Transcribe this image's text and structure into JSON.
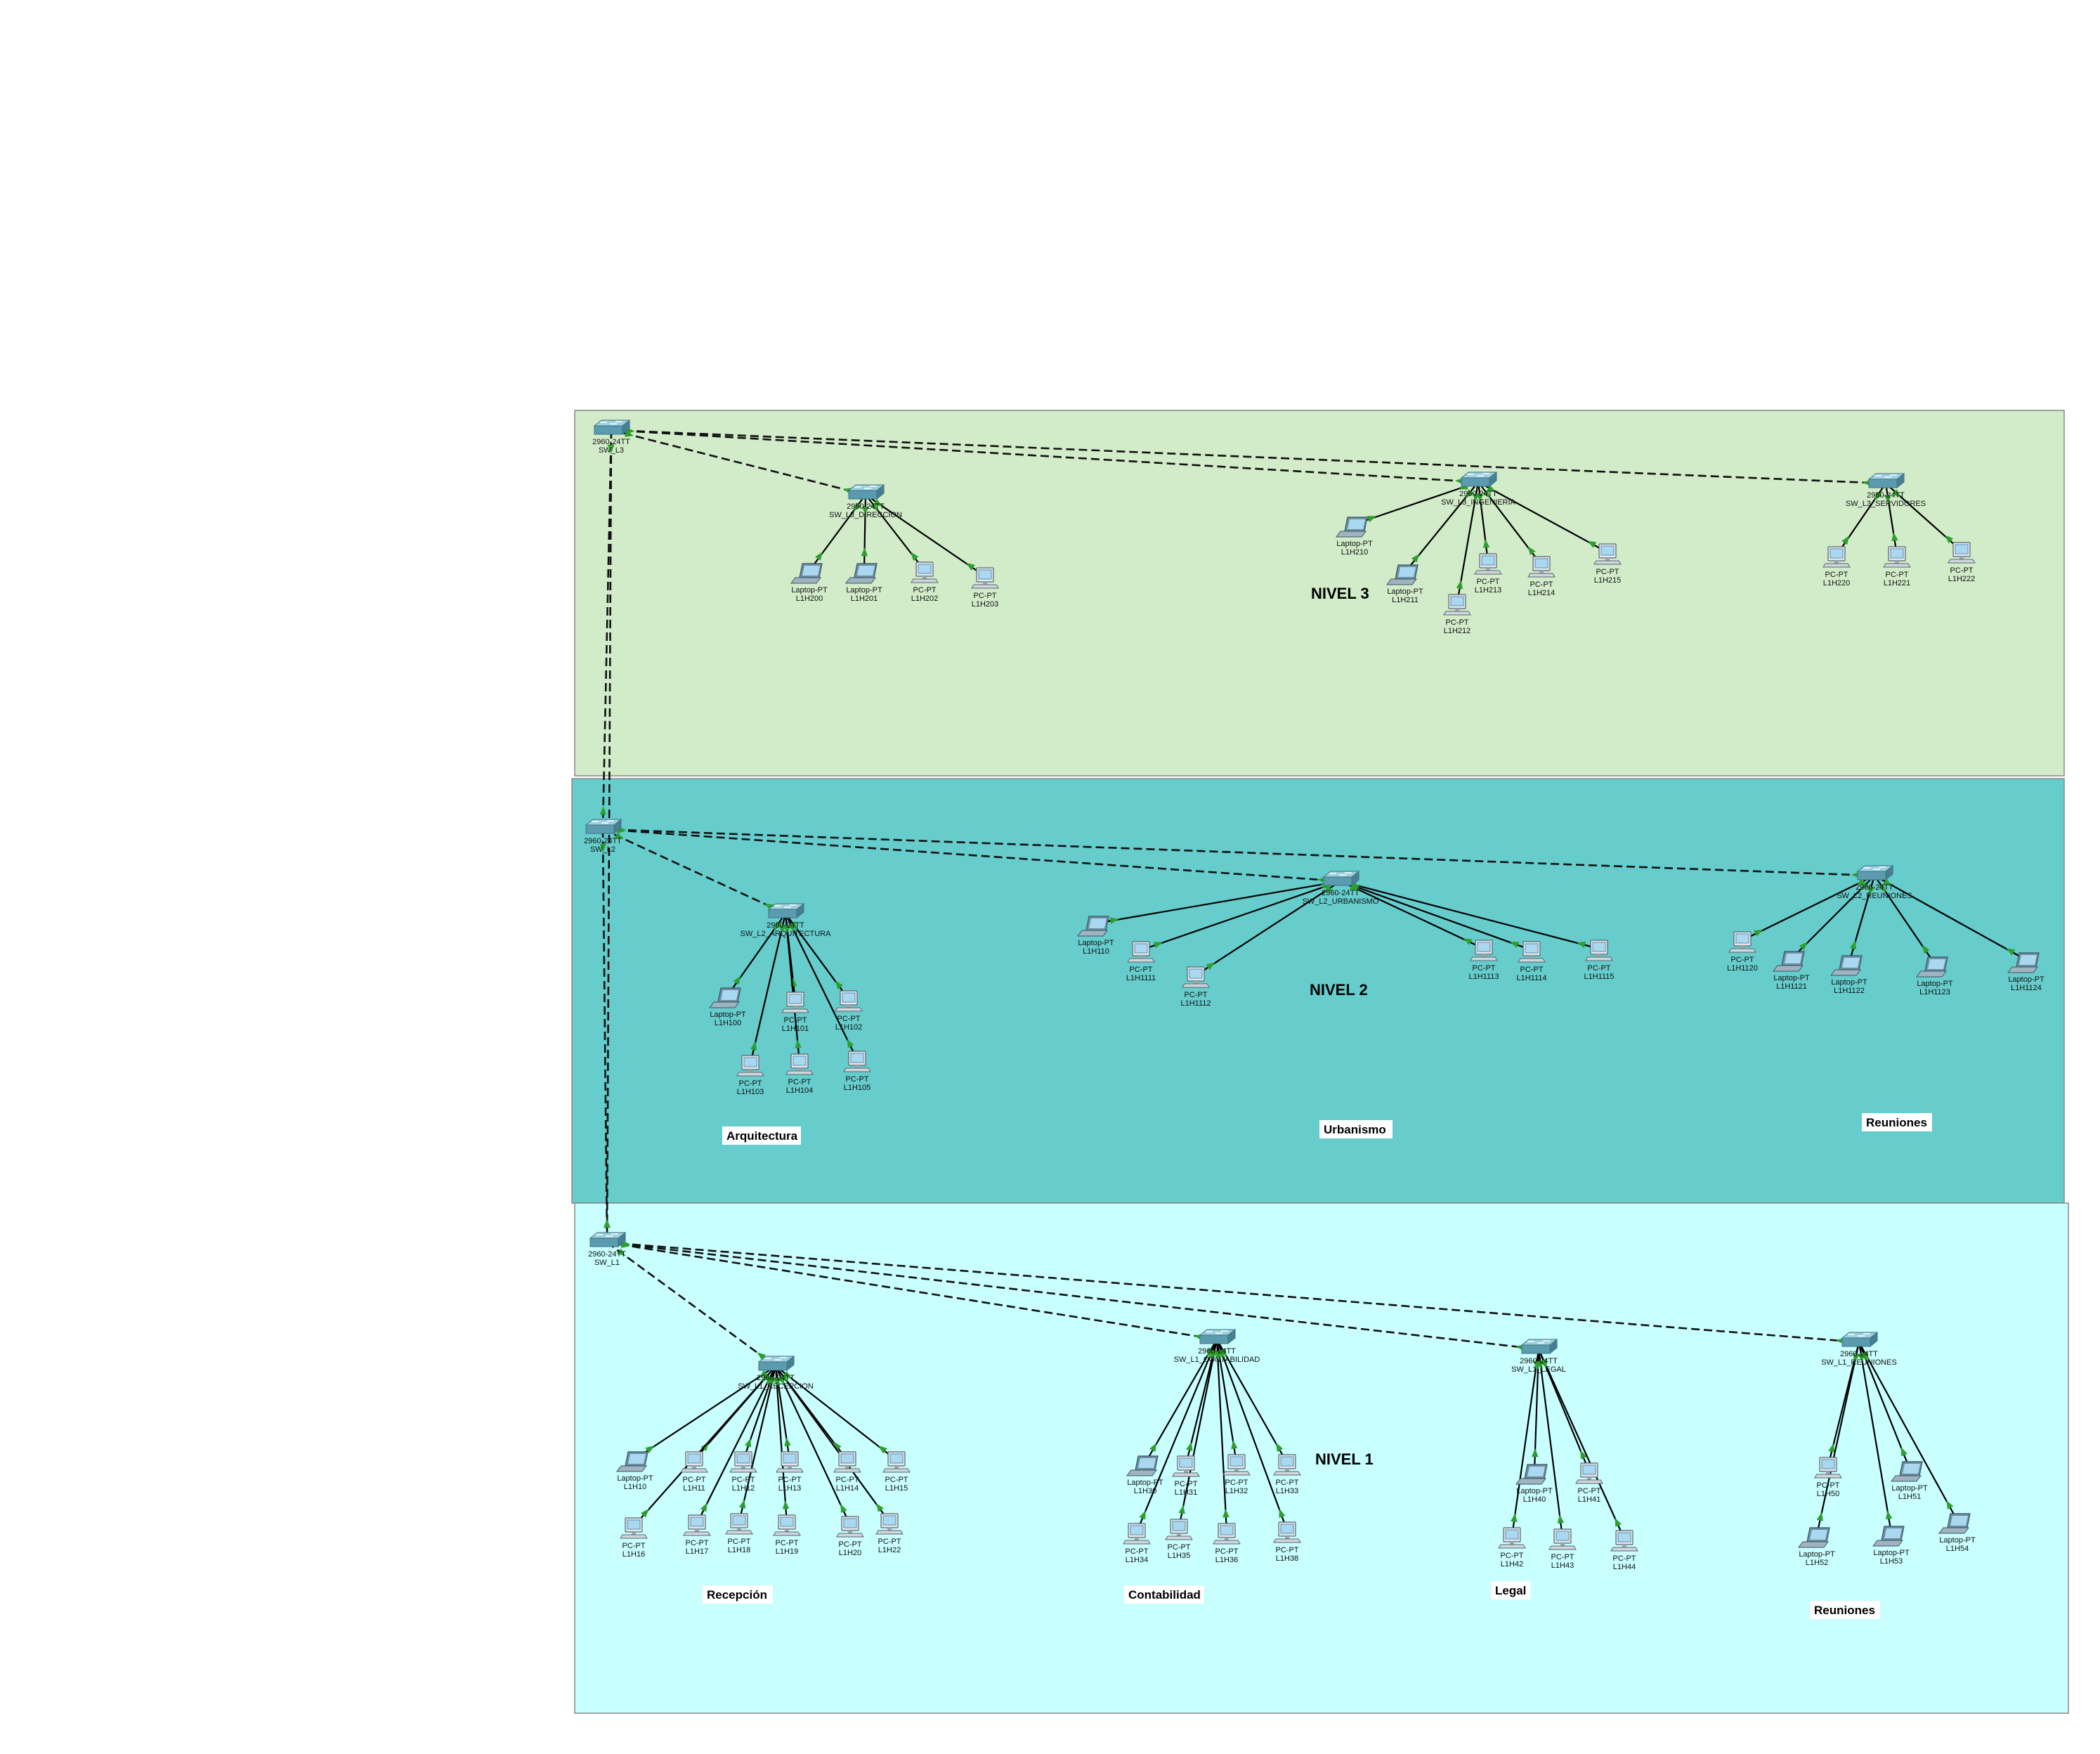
{
  "colors": {
    "nivel3_bg": "#d2ebc9",
    "nivel2_bg": "#66cccc",
    "nivel1_bg": "#c9ffff",
    "trunk_link": "#111111",
    "access_link": "#000000",
    "link_endpoint": "#2e9e2e",
    "switch_body": "#5b9bb0",
    "label_box": "#ffffff"
  },
  "icons": {
    "switch": "switch-icon",
    "pc": "pc-icon",
    "laptop": "laptop-icon"
  },
  "zones": [
    {
      "id": "n3",
      "label": "NIVEL 3"
    },
    {
      "id": "n2",
      "label": "NIVEL 2"
    },
    {
      "id": "n1",
      "label": "NIVEL 1"
    }
  ],
  "area_labels": [
    "Arquitectura",
    "Urbanismo",
    "Reuniones",
    "Recepción",
    "Contabilidad",
    "Legal",
    "Reuniones"
  ],
  "switches": [
    {
      "id": "sw_l3",
      "model": "2960-24TT",
      "name": "SW_L3"
    },
    {
      "id": "sw_l3_dir",
      "model": "2960-24TT",
      "name": "SW_L3_DIRECCION"
    },
    {
      "id": "sw_l3_ing",
      "model": "2960-24TT",
      "name": "SW_L3_INGENIERIA"
    },
    {
      "id": "sw_l3_srv",
      "model": "2960-24TT",
      "name": "SW_L3_SERVIDORES"
    },
    {
      "id": "sw_l2",
      "model": "2960-24TT",
      "name": "SW_L2"
    },
    {
      "id": "sw_l2_arq",
      "model": "2960-24TT",
      "name": "SW_L2_ARQUITECTURA"
    },
    {
      "id": "sw_l2_urb",
      "model": "2960-24TT",
      "name": "SW_L2_URBANISMO"
    },
    {
      "id": "sw_l2_reu",
      "model": "2960-24TT",
      "name": "SW_L2_REUNIONES"
    },
    {
      "id": "sw_l1",
      "model": "2960-24TT",
      "name": "SW_L1"
    },
    {
      "id": "sw_l1_rec",
      "model": "2960-24TT",
      "name": "SW_L1_RECEPCION"
    },
    {
      "id": "sw_l1_con",
      "model": "2960-24TT",
      "name": "SW_L1_CONTABILIDAD"
    },
    {
      "id": "sw_l1_leg",
      "model": "2960-24TT",
      "name": "SW_L1_LEGAL"
    },
    {
      "id": "sw_l1_reu",
      "model": "2960-24TT",
      "name": "SW_L1_REUNIONES"
    }
  ],
  "hosts": [
    {
      "type": "Laptop-PT",
      "name": "L1H200",
      "switch": "sw_l3_dir"
    },
    {
      "type": "Laptop-PT",
      "name": "L1H201",
      "switch": "sw_l3_dir"
    },
    {
      "type": "PC-PT",
      "name": "L1H202",
      "switch": "sw_l3_dir"
    },
    {
      "type": "PC-PT",
      "name": "L1H203",
      "switch": "sw_l3_dir"
    },
    {
      "type": "Laptop-PT",
      "name": "L1H210",
      "switch": "sw_l3_ing"
    },
    {
      "type": "Laptop-PT",
      "name": "L1H211",
      "switch": "sw_l3_ing"
    },
    {
      "type": "PC-PT",
      "name": "L1H212",
      "switch": "sw_l3_ing"
    },
    {
      "type": "PC-PT",
      "name": "L1H213",
      "switch": "sw_l3_ing"
    },
    {
      "type": "PC-PT",
      "name": "L1H214",
      "switch": "sw_l3_ing"
    },
    {
      "type": "PC-PT",
      "name": "L1H215",
      "switch": "sw_l3_ing"
    },
    {
      "type": "PC-PT",
      "name": "L1H220",
      "switch": "sw_l3_srv"
    },
    {
      "type": "PC-PT",
      "name": "L1H221",
      "switch": "sw_l3_srv"
    },
    {
      "type": "PC-PT",
      "name": "L1H222",
      "switch": "sw_l3_srv"
    },
    {
      "type": "Laptop-PT",
      "name": "L1H100",
      "switch": "sw_l2_arq"
    },
    {
      "type": "PC-PT",
      "name": "L1H101",
      "switch": "sw_l2_arq"
    },
    {
      "type": "PC-PT",
      "name": "L1H102",
      "switch": "sw_l2_arq"
    },
    {
      "type": "PC-PT",
      "name": "L1H103",
      "switch": "sw_l2_arq"
    },
    {
      "type": "PC-PT",
      "name": "L1H104",
      "switch": "sw_l2_arq"
    },
    {
      "type": "PC-PT",
      "name": "L1H105",
      "switch": "sw_l2_arq"
    },
    {
      "type": "Laptop-PT",
      "name": "L1H110",
      "switch": "sw_l2_urb"
    },
    {
      "type": "PC-PT",
      "name": "L1H1111",
      "switch": "sw_l2_urb"
    },
    {
      "type": "PC-PT",
      "name": "L1H1112",
      "switch": "sw_l2_urb"
    },
    {
      "type": "PC-PT",
      "name": "L1H1113",
      "switch": "sw_l2_urb"
    },
    {
      "type": "PC-PT",
      "name": "L1H1114",
      "switch": "sw_l2_urb"
    },
    {
      "type": "PC-PT",
      "name": "L1H1115",
      "switch": "sw_l2_urb"
    },
    {
      "type": "PC-PT",
      "name": "L1H1120",
      "switch": "sw_l2_reu"
    },
    {
      "type": "Laptop-PT",
      "name": "L1H1121",
      "switch": "sw_l2_reu"
    },
    {
      "type": "Laptop-PT",
      "name": "L1H1122",
      "switch": "sw_l2_reu"
    },
    {
      "type": "Laptop-PT",
      "name": "L1H1123",
      "switch": "sw_l2_reu"
    },
    {
      "type": "Laptop-PT",
      "name": "L1H1124",
      "switch": "sw_l2_reu"
    },
    {
      "type": "Laptop-PT",
      "name": "L1H10",
      "switch": "sw_l1_rec"
    },
    {
      "type": "PC-PT",
      "name": "L1H11",
      "switch": "sw_l1_rec"
    },
    {
      "type": "PC-PT",
      "name": "L1H12",
      "switch": "sw_l1_rec"
    },
    {
      "type": "PC-PT",
      "name": "L1H13",
      "switch": "sw_l1_rec"
    },
    {
      "type": "PC-PT",
      "name": "L1H14",
      "switch": "sw_l1_rec"
    },
    {
      "type": "PC-PT",
      "name": "L1H15",
      "switch": "sw_l1_rec"
    },
    {
      "type": "PC-PT",
      "name": "L1H16",
      "switch": "sw_l1_rec"
    },
    {
      "type": "PC-PT",
      "name": "L1H17",
      "switch": "sw_l1_rec"
    },
    {
      "type": "PC-PT",
      "name": "L1H18",
      "switch": "sw_l1_rec"
    },
    {
      "type": "PC-PT",
      "name": "L1H19",
      "switch": "sw_l1_rec"
    },
    {
      "type": "PC-PT",
      "name": "L1H20",
      "switch": "sw_l1_rec"
    },
    {
      "type": "PC-PT",
      "name": "L1H22",
      "switch": "sw_l1_rec"
    },
    {
      "type": "Laptop-PT",
      "name": "L1H30",
      "switch": "sw_l1_con"
    },
    {
      "type": "PC-PT",
      "name": "L1H31",
      "switch": "sw_l1_con"
    },
    {
      "type": "PC-PT",
      "name": "L1H32",
      "switch": "sw_l1_con"
    },
    {
      "type": "PC-PT",
      "name": "L1H33",
      "switch": "sw_l1_con"
    },
    {
      "type": "PC-PT",
      "name": "L1H34",
      "switch": "sw_l1_con"
    },
    {
      "type": "PC-PT",
      "name": "L1H35",
      "switch": "sw_l1_con"
    },
    {
      "type": "PC-PT",
      "name": "L1H36",
      "switch": "sw_l1_con"
    },
    {
      "type": "PC-PT",
      "name": "L1H38",
      "switch": "sw_l1_con"
    },
    {
      "type": "Laptop-PT",
      "name": "L1H40",
      "switch": "sw_l1_leg"
    },
    {
      "type": "PC-PT",
      "name": "L1H41",
      "switch": "sw_l1_leg"
    },
    {
      "type": "PC-PT",
      "name": "L1H42",
      "switch": "sw_l1_leg"
    },
    {
      "type": "PC-PT",
      "name": "L1H43",
      "switch": "sw_l1_leg"
    },
    {
      "type": "PC-PT",
      "name": "L1H44",
      "switch": "sw_l1_leg"
    },
    {
      "type": "PC-PT",
      "name": "L1H50",
      "switch": "sw_l1_reu"
    },
    {
      "type": "Laptop-PT",
      "name": "L1H51",
      "switch": "sw_l1_reu"
    },
    {
      "type": "Laptop-PT",
      "name": "L1H52",
      "switch": "sw_l1_reu"
    },
    {
      "type": "Laptop-PT",
      "name": "L1H53",
      "switch": "sw_l1_reu"
    },
    {
      "type": "Laptop-PT",
      "name": "L1H54",
      "switch": "sw_l1_reu"
    }
  ],
  "trunks": [
    [
      "sw_l3",
      "sw_l3_dir"
    ],
    [
      "sw_l3",
      "sw_l3_ing"
    ],
    [
      "sw_l3",
      "sw_l3_srv"
    ],
    [
      "sw_l3",
      "sw_l2"
    ],
    [
      "sw_l2",
      "sw_l2_arq"
    ],
    [
      "sw_l2",
      "sw_l2_urb"
    ],
    [
      "sw_l2",
      "sw_l2_reu"
    ],
    [
      "sw_l2",
      "sw_l1"
    ],
    [
      "sw_l1",
      "sw_l1_rec"
    ],
    [
      "sw_l1",
      "sw_l1_con"
    ],
    [
      "sw_l1",
      "sw_l1_leg"
    ],
    [
      "sw_l1",
      "sw_l1_reu"
    ],
    [
      "sw_l3",
      "sw_l1"
    ]
  ]
}
